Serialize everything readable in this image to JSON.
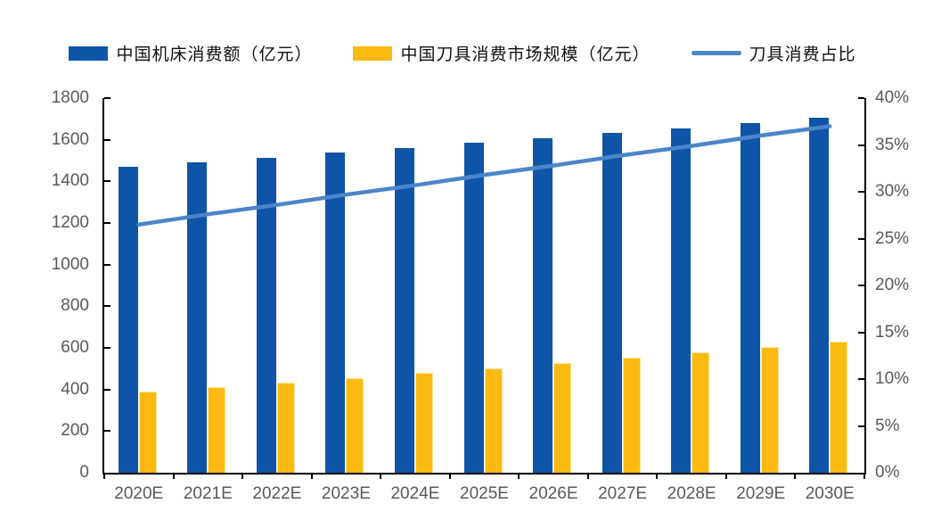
{
  "legend": {
    "machine_label": "中国机床消费额（亿元）",
    "tool_label": "中国刀具消费市场规模（亿元）",
    "ratio_label": "刀具消费占比"
  },
  "colors": {
    "machine_bar": "#0E55A7",
    "tool_bar": "#FBBA11",
    "tool_bar_edge": "#FFE699",
    "ratio_line": "#4A86C8",
    "axis_line": "#000000",
    "tick_label": "#595959"
  },
  "chart_data": {
    "type": "bar",
    "subtype": "grouped-bars-with-line-combo",
    "title": "",
    "categories": [
      "2020E",
      "2021E",
      "2022E",
      "2023E",
      "2024E",
      "2025E",
      "2026E",
      "2027E",
      "2028E",
      "2029E",
      "2030E"
    ],
    "series": [
      {
        "name": "中国机床消费额（亿元）",
        "type": "bar",
        "axis": "left",
        "color": "#0E55A7",
        "values": [
          1470,
          1492,
          1514,
          1537,
          1560,
          1584,
          1607,
          1631,
          1656,
          1681,
          1706
        ]
      },
      {
        "name": "中国刀具消费市场规模（亿元）",
        "type": "bar",
        "axis": "left",
        "color": "#FBBA11",
        "values": [
          390,
          411,
          433,
          456,
          479,
          503,
          527,
          552,
          578,
          604,
          631
        ]
      },
      {
        "name": "刀具消费占比",
        "type": "line",
        "axis": "right",
        "color": "#4A86C8",
        "unit": "%",
        "values": [
          26.5,
          27.6,
          28.6,
          29.7,
          30.7,
          31.8,
          32.8,
          33.9,
          34.9,
          36.0,
          37.0
        ]
      }
    ],
    "left_axis": {
      "min": 0,
      "max": 1800,
      "step": 200,
      "tick_labels": [
        "0",
        "200",
        "400",
        "600",
        "800",
        "1000",
        "1200",
        "1400",
        "1600",
        "1800"
      ]
    },
    "right_axis": {
      "min": 0,
      "max": 40,
      "step": 5,
      "unit": "%",
      "tick_labels": [
        "0%",
        "5%",
        "10%",
        "15%",
        "20%",
        "25%",
        "30%",
        "35%",
        "40%"
      ]
    },
    "grid": false,
    "legend_position": "top"
  }
}
